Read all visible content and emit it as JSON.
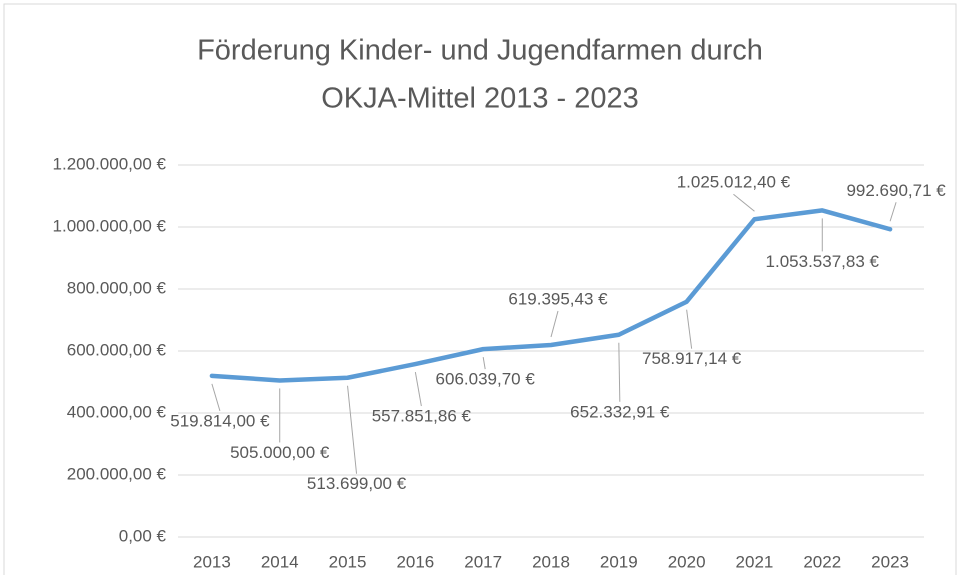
{
  "chart_data": {
    "type": "line",
    "title": [
      "Förderung Kinder- und Jugendfarmen durch",
      "OKJA-Mittel 2013 - 2023"
    ],
    "categories": [
      "2013",
      "2014",
      "2015",
      "2016",
      "2017",
      "2018",
      "2019",
      "2020",
      "2021",
      "2022",
      "2023"
    ],
    "series": [
      {
        "name": "OKJA-Mittel",
        "color": "#5b9bd5",
        "values": [
          519814.0,
          505000.0,
          513699.0,
          557851.86,
          606039.7,
          619395.43,
          652332.91,
          758917.14,
          1025012.4,
          1053537.83,
          992690.71
        ],
        "value_labels": [
          "519.814,00 €",
          "505.000,00 €",
          "513.699,00 €",
          "557.851,86 €",
          "606.039,70 €",
          "619.395,43 €",
          "652.332,91 €",
          "758.917,14 €",
          "1.025.012,40 €",
          "1.053.537,83 €",
          "992.690,71 €"
        ]
      }
    ],
    "ylim": [
      0,
      1200000
    ],
    "yticks": [
      {
        "value": 0,
        "label": "0,00 €"
      },
      {
        "value": 200000,
        "label": "200.000,00 €"
      },
      {
        "value": 400000,
        "label": "400.000,00 €"
      },
      {
        "value": 600000,
        "label": "600.000,00 €"
      },
      {
        "value": 800000,
        "label": "800.000,00 €"
      },
      {
        "value": 1000000,
        "label": "1.000.000,00 €"
      },
      {
        "value": 1200000,
        "label": "1.200.000,00 €"
      }
    ],
    "grid": true
  }
}
